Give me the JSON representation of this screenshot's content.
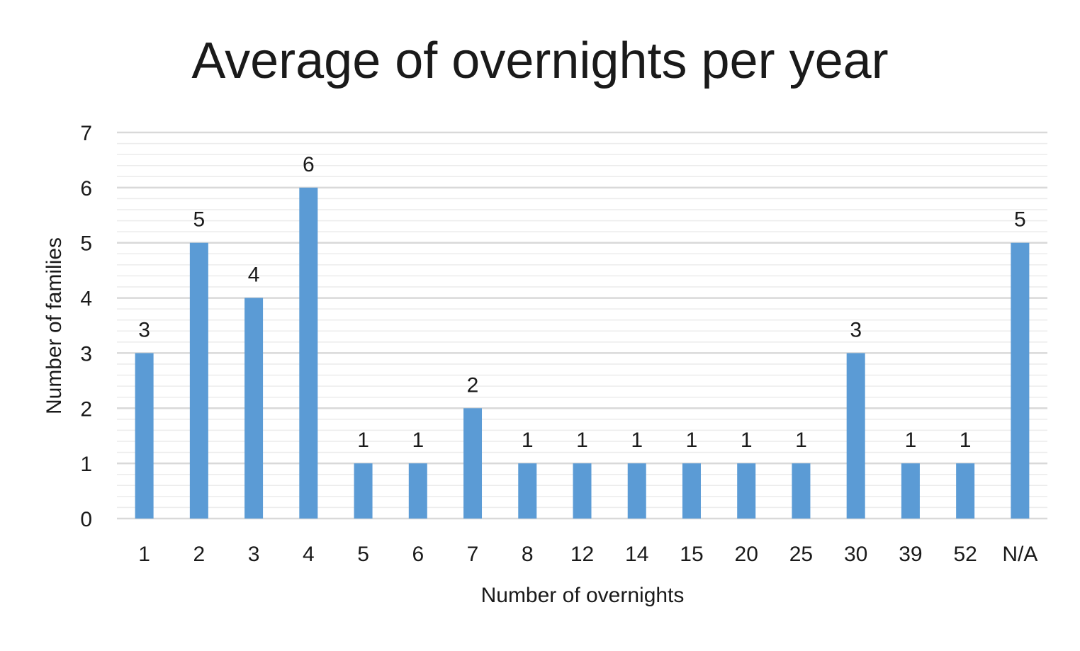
{
  "chart_data": {
    "type": "bar",
    "title": "Average of overnights per year",
    "xlabel": "Number of overnights",
    "ylabel": "Number of families",
    "categories": [
      "1",
      "2",
      "3",
      "4",
      "5",
      "6",
      "7",
      "8",
      "12",
      "14",
      "15",
      "20",
      "25",
      "30",
      "39",
      "52",
      "N/A"
    ],
    "values": [
      3,
      5,
      4,
      6,
      1,
      1,
      2,
      1,
      1,
      1,
      1,
      1,
      1,
      3,
      1,
      1,
      5
    ],
    "ylim": [
      0,
      7
    ],
    "yticks": [
      0,
      1,
      2,
      3,
      4,
      5,
      6,
      7
    ],
    "minor_grid_step": 0.2,
    "grid": true,
    "legend": "none",
    "data_labels": true,
    "colors": {
      "bar": "#5b9bd5",
      "major_grid": "#d9d9d9",
      "minor_grid": "#ececec",
      "axis_line": "#d9d9d9",
      "text": "#1a1a1a"
    }
  }
}
